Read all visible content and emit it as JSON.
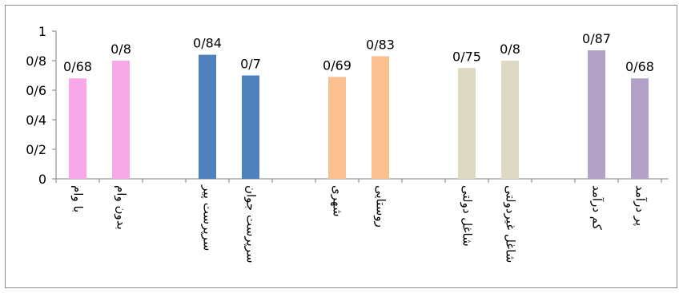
{
  "chart_data": {
    "type": "bar",
    "categories": [
      "با وام",
      "بدون وام",
      "سرپرست پیر",
      "سرپرست جوان",
      "شهری",
      "روستایی",
      "شاغل دولتی",
      "شاغل غیردولتی",
      "کم درآمد",
      "پر درآمد"
    ],
    "values": [
      0.68,
      0.8,
      0.84,
      0.7,
      0.69,
      0.83,
      0.75,
      0.8,
      0.87,
      0.68
    ],
    "data_labels": [
      "0/68",
      "0/8",
      "0/84",
      "0/7",
      "0/69",
      "0/83",
      "0/75",
      "0/8",
      "0/87",
      "0/68"
    ],
    "groups": [
      {
        "color": "#f7a8e7"
      },
      {
        "color": "#4f81bd"
      },
      {
        "color": "#fac08f"
      },
      {
        "color": "#ddd9c3"
      },
      {
        "color": "#b2a2c7"
      }
    ],
    "yticks": [
      "0",
      "0/2",
      "0/4",
      "0/6",
      "0/8",
      "1"
    ],
    "ylim": [
      0,
      1
    ],
    "title": "",
    "xlabel": "",
    "ylabel": "",
    "grid": false,
    "legend": "none"
  }
}
